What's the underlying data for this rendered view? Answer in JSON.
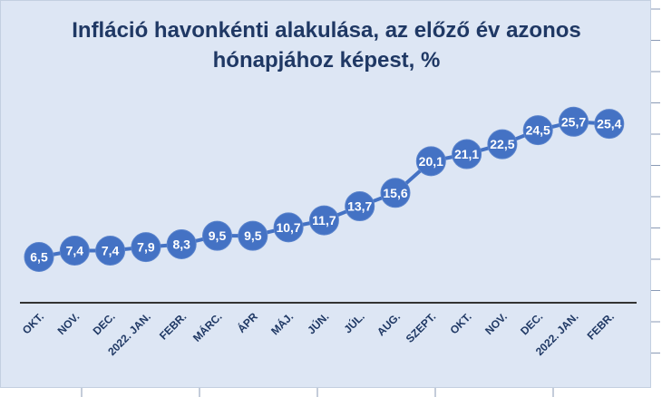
{
  "chart_data": {
    "type": "line",
    "title_line1": "Infláció havonkénti alakulása, az előző év azonos",
    "title_line2": "hónapjához képest, %",
    "categories": [
      "OKT.",
      "NOV.",
      "DEC.",
      "2022. JAN.",
      "FEBR.",
      "MÁRC.",
      "ÁPR",
      "MÁJ.",
      "JÚN.",
      "JÚL.",
      "AUG.",
      "SZEPT.",
      "OKT.",
      "NOV.",
      "DEC.",
      "2022. JAN.",
      "FEBR."
    ],
    "values": [
      6.5,
      7.4,
      7.4,
      7.9,
      8.3,
      9.5,
      9.5,
      10.7,
      11.7,
      13.7,
      15.6,
      20.1,
      21.1,
      22.5,
      24.5,
      25.7,
      25.4
    ],
    "data_labels": [
      "6,5",
      "7,4",
      "7,4",
      "7,9",
      "8,3",
      "9,5",
      "9,5",
      "10,7",
      "11,7",
      "13,7",
      "15,6",
      "20,1",
      "21,1",
      "22,5",
      "24,5",
      "25,7",
      "25,4"
    ],
    "ylim": [
      0,
      32
    ],
    "grid": false,
    "line_color": "#4472c4",
    "marker_color": "#4472c4",
    "label_color": "#ffffff",
    "title_color": "#1f3864",
    "background": "#dde6f4"
  }
}
